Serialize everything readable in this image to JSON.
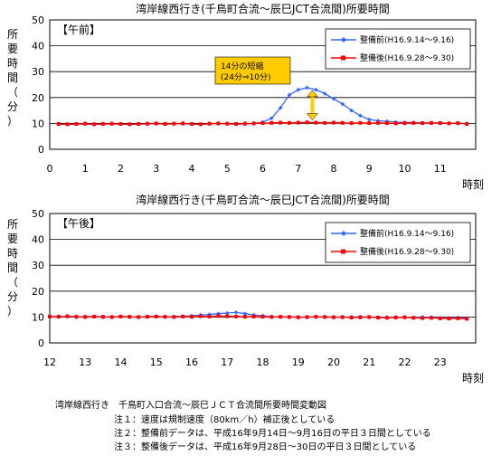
{
  "chart_data": [
    {
      "type": "line",
      "title": "湾岸線西行き(千鳥町合流～辰巳JCT合流間)所要時間",
      "ylabel": "所要時間（分）",
      "xlabel": "時刻",
      "period_label": "【午前】",
      "ylim": [
        0,
        50
      ],
      "yticks": [
        0,
        10,
        20,
        30,
        40,
        50
      ],
      "xlim": [
        0,
        12
      ],
      "xticks": [
        0,
        1,
        2,
        3,
        4,
        5,
        6,
        7,
        8,
        9,
        10,
        11
      ],
      "grid": true,
      "legend_position": "top-right",
      "series": [
        {
          "name": "整備前(H16.9.14～9.16)",
          "color": "#3366ff",
          "marker": "diamond",
          "x": [
            0.25,
            0.5,
            0.75,
            1,
            1.25,
            1.5,
            1.75,
            2,
            2.25,
            2.5,
            2.75,
            3,
            3.25,
            3.5,
            3.75,
            4,
            4.25,
            4.5,
            4.75,
            5,
            5.25,
            5.5,
            5.75,
            6,
            6.25,
            6.5,
            6.75,
            7,
            7.25,
            7.5,
            7.75,
            8,
            8.25,
            8.5,
            8.75,
            9,
            9.25,
            9.5,
            9.75,
            10,
            10.25,
            10.5,
            10.75,
            11,
            11.25,
            11.5,
            11.75
          ],
          "values": [
            9.7,
            9.6,
            9.7,
            9.8,
            9.6,
            9.7,
            9.8,
            9.7,
            9.6,
            9.7,
            9.8,
            9.9,
            9.7,
            9.8,
            9.9,
            9.7,
            9.6,
            9.8,
            9.9,
            9.8,
            9.7,
            9.8,
            10,
            10.5,
            12,
            16,
            21,
            23,
            23.8,
            23,
            21.5,
            19.5,
            17.5,
            15,
            13,
            11.5,
            11,
            10.8,
            10.5,
            10.4,
            10.3,
            10.2,
            10.1,
            10.2,
            10.1,
            10,
            9.9
          ]
        },
        {
          "name": "整備後(H16.9.28～9.30)",
          "color": "#ff0000",
          "marker": "square",
          "x": [
            0.25,
            0.5,
            0.75,
            1,
            1.25,
            1.5,
            1.75,
            2,
            2.25,
            2.5,
            2.75,
            3,
            3.25,
            3.5,
            3.75,
            4,
            4.25,
            4.5,
            4.75,
            5,
            5.25,
            5.5,
            5.75,
            6,
            6.25,
            6.5,
            6.75,
            7,
            7.25,
            7.5,
            7.75,
            8,
            8.25,
            8.5,
            8.75,
            9,
            9.25,
            9.5,
            9.75,
            10,
            10.25,
            10.5,
            10.75,
            11,
            11.25,
            11.5,
            11.75
          ],
          "values": [
            9.8,
            9.7,
            9.8,
            9.9,
            9.7,
            9.8,
            9.9,
            9.8,
            9.7,
            9.8,
            9.9,
            10,
            9.8,
            9.9,
            10,
            9.8,
            9.7,
            9.9,
            10,
            9.9,
            9.8,
            9.9,
            10,
            10.1,
            10.2,
            10.3,
            10.2,
            10.3,
            10.4,
            10.3,
            10.2,
            10.3,
            10.2,
            10.1,
            10.2,
            10.1,
            10.2,
            10.1,
            10,
            10.1,
            10.2,
            10.1,
            10.2,
            10.1,
            10,
            10.1,
            9.8
          ]
        }
      ],
      "annotation": {
        "lines": [
          "14分の短縮",
          "(24分⇒10分)"
        ],
        "box_color": "#ffcc00",
        "arrow_color": "#ffcc00",
        "arrow_x": 7.4,
        "arrow_from": 23.8,
        "arrow_to": 10.3
      }
    },
    {
      "type": "line",
      "title": "湾岸線西行き(千鳥町合流～辰巳JCT合流間)所要時間",
      "ylabel": "所要時間（分）",
      "xlabel": "時刻",
      "period_label": "【午後】",
      "ylim": [
        0,
        50
      ],
      "yticks": [
        0,
        10,
        20,
        30,
        40,
        50
      ],
      "xlim": [
        12,
        24
      ],
      "xticks": [
        12,
        13,
        14,
        15,
        16,
        17,
        18,
        19,
        20,
        21,
        22,
        23
      ],
      "grid": true,
      "legend_position": "top-right",
      "series": [
        {
          "name": "整備前(H16.9.14～9.16)",
          "color": "#3366ff",
          "marker": "diamond",
          "x": [
            12,
            12.25,
            12.5,
            12.75,
            13,
            13.25,
            13.5,
            13.75,
            14,
            14.25,
            14.5,
            14.75,
            15,
            15.25,
            15.5,
            15.75,
            16,
            16.25,
            16.5,
            16.75,
            17,
            17.25,
            17.5,
            17.75,
            18,
            18.25,
            18.5,
            18.75,
            19,
            19.25,
            19.5,
            19.75,
            20,
            20.25,
            20.5,
            20.75,
            21,
            21.25,
            21.5,
            21.75,
            22,
            22.25,
            22.5,
            22.75,
            23,
            23.25,
            23.5,
            23.75
          ],
          "values": [
            10,
            10.2,
            10.1,
            10,
            10.2,
            10.1,
            9.9,
            10,
            10.1,
            10,
            9.9,
            10.2,
            10.1,
            10,
            10.2,
            10.3,
            10.5,
            10.8,
            11,
            11.3,
            11.5,
            11.8,
            11.3,
            10.8,
            10.5,
            10.2,
            10,
            10.1,
            10,
            9.9,
            10,
            10.1,
            10,
            9.9,
            10,
            10.1,
            10,
            9.8,
            9.9,
            10,
            9.9,
            9.8,
            10,
            9.9,
            9.6,
            9.7,
            9.8,
            9.6
          ]
        },
        {
          "name": "整備後(H16.9.28～9.30)",
          "color": "#ff0000",
          "marker": "square",
          "x": [
            12,
            12.25,
            12.5,
            12.75,
            13,
            13.25,
            13.5,
            13.75,
            14,
            14.25,
            14.5,
            14.75,
            15,
            15.25,
            15.5,
            15.75,
            16,
            16.25,
            16.5,
            16.75,
            17,
            17.25,
            17.5,
            17.75,
            18,
            18.25,
            18.5,
            18.75,
            19,
            19.25,
            19.5,
            19.75,
            20,
            20.25,
            20.5,
            20.75,
            21,
            21.25,
            21.5,
            21.75,
            22,
            22.25,
            22.5,
            22.75,
            23,
            23.25,
            23.5,
            23.75
          ],
          "values": [
            10.2,
            10.1,
            10.3,
            10.1,
            10,
            10.2,
            10.1,
            10,
            10.2,
            10.1,
            10,
            10.1,
            10.2,
            10.1,
            10,
            10.2,
            10.1,
            10.3,
            10.2,
            10.4,
            10.3,
            10.2,
            10.1,
            10.2,
            10.1,
            10,
            10.1,
            10,
            9.9,
            10,
            10.1,
            10,
            9.9,
            10,
            9.8,
            9.9,
            10,
            9.8,
            9.7,
            9.8,
            9.9,
            9.7,
            9.6,
            9.7,
            9.5,
            9.4,
            9.5,
            9.3
          ]
        }
      ]
    }
  ],
  "notes": {
    "caption": "湾岸線西行き　千鳥町入口合流～辰巳ＪＣＴ合流間所要時間変動図",
    "items": [
      "注１：速度は規制速度（80km／h）補正後としている",
      "注２：整備前データは、平成16年9月14日～9月16日の平日３日間としている",
      "注３：整備後データは、平成16年9月28日～30日の平日３日間としている"
    ]
  }
}
